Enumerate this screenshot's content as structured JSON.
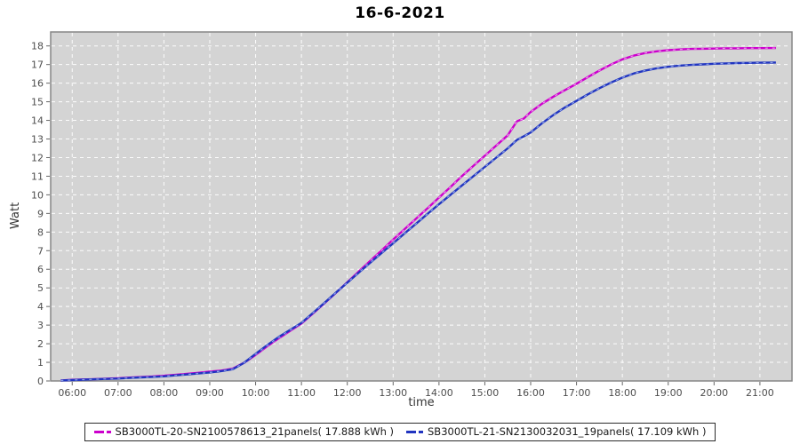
{
  "chart_data": {
    "type": "line",
    "title": "16-6-2021",
    "xlabel": "time",
    "ylabel": "Watt",
    "plot_bg": "#d4d4d4",
    "grid_color": "#ffffff",
    "border_color": "#868686",
    "tick_color": "#666666",
    "tick_label_color": "#4d4d4d",
    "legend_position": "bottom-center",
    "grid": "dashed-white-on-gray",
    "xlim": [
      5.53,
      21.7
    ],
    "ylim": [
      0,
      18.75
    ],
    "x_ticks": [
      {
        "v": 6,
        "label": "06:00"
      },
      {
        "v": 7,
        "label": "07:00"
      },
      {
        "v": 8,
        "label": "08:00"
      },
      {
        "v": 9,
        "label": "09:00"
      },
      {
        "v": 10,
        "label": "10:00"
      },
      {
        "v": 11,
        "label": "11:00"
      },
      {
        "v": 12,
        "label": "12:00"
      },
      {
        "v": 13,
        "label": "13:00"
      },
      {
        "v": 14,
        "label": "14:00"
      },
      {
        "v": 15,
        "label": "15:00"
      },
      {
        "v": 16,
        "label": "16:00"
      },
      {
        "v": 17,
        "label": "17:00"
      },
      {
        "v": 18,
        "label": "18:00"
      },
      {
        "v": 19,
        "label": "19:00"
      },
      {
        "v": 20,
        "label": "20:00"
      },
      {
        "v": 21,
        "label": "21:00"
      }
    ],
    "y_ticks": [
      {
        "v": 0,
        "label": "0"
      },
      {
        "v": 1,
        "label": "1"
      },
      {
        "v": 2,
        "label": "2"
      },
      {
        "v": 3,
        "label": "3"
      },
      {
        "v": 4,
        "label": "4"
      },
      {
        "v": 5,
        "label": "5"
      },
      {
        "v": 6,
        "label": "6"
      },
      {
        "v": 7,
        "label": "7"
      },
      {
        "v": 8,
        "label": "8"
      },
      {
        "v": 9,
        "label": "9"
      },
      {
        "v": 10,
        "label": "10"
      },
      {
        "v": 11,
        "label": "11"
      },
      {
        "v": 12,
        "label": "12"
      },
      {
        "v": 13,
        "label": "13"
      },
      {
        "v": 14,
        "label": "14"
      },
      {
        "v": 15,
        "label": "15"
      },
      {
        "v": 16,
        "label": "16"
      },
      {
        "v": 17,
        "label": "17"
      },
      {
        "v": 18,
        "label": "18"
      }
    ],
    "x": [
      5.75,
      6,
      6.25,
      6.5,
      6.75,
      7,
      7.25,
      7.5,
      7.75,
      8,
      8.25,
      8.5,
      8.75,
      9,
      9.25,
      9.5,
      9.75,
      10,
      10.25,
      10.5,
      10.75,
      11,
      11.25,
      11.5,
      11.75,
      12,
      12.25,
      12.5,
      12.75,
      13,
      13.25,
      13.5,
      13.75,
      14,
      14.25,
      14.5,
      14.75,
      15,
      15.25,
      15.5,
      15.7,
      15.85,
      16,
      16.25,
      16.5,
      16.75,
      17,
      17.25,
      17.5,
      17.75,
      18,
      18.25,
      18.5,
      18.75,
      19,
      19.25,
      19.5,
      19.75,
      20,
      20.25,
      20.5,
      20.75,
      21,
      21.35
    ],
    "series": [
      {
        "name": "SB3000TL-20",
        "legend_label": "SB3000TL-20-SN2100578613_21panels( 17.888 kWh )",
        "color": "#cc00cc",
        "light_color": "#ee8fee",
        "total_kwh": 17.888,
        "values": [
          0.03,
          0.06,
          0.08,
          0.1,
          0.12,
          0.15,
          0.18,
          0.21,
          0.24,
          0.28,
          0.33,
          0.38,
          0.44,
          0.5,
          0.56,
          0.66,
          0.98,
          1.4,
          1.85,
          2.28,
          2.68,
          3.08,
          3.62,
          4.17,
          4.73,
          5.3,
          5.88,
          6.45,
          7.02,
          7.6,
          8.16,
          8.72,
          9.28,
          9.85,
          10.42,
          11.0,
          11.55,
          12.1,
          12.65,
          13.2,
          13.95,
          14.1,
          14.45,
          14.9,
          15.28,
          15.63,
          15.97,
          16.33,
          16.68,
          17.0,
          17.28,
          17.48,
          17.62,
          17.71,
          17.77,
          17.81,
          17.84,
          17.85,
          17.86,
          17.87,
          17.87,
          17.88,
          17.88,
          17.888
        ]
      },
      {
        "name": "SB3000TL-21",
        "legend_label": "SB3000TL-21-SN2130032031_19panels( 17.109 kWh )",
        "color": "#2135c0",
        "light_color": "#8fa4e8",
        "total_kwh": 17.109,
        "values": [
          0.03,
          0.05,
          0.07,
          0.09,
          0.11,
          0.13,
          0.16,
          0.19,
          0.22,
          0.25,
          0.3,
          0.35,
          0.4,
          0.46,
          0.53,
          0.63,
          0.98,
          1.45,
          1.92,
          2.35,
          2.74,
          3.12,
          3.65,
          4.19,
          4.74,
          5.28,
          5.82,
          6.35,
          6.88,
          7.4,
          7.93,
          8.45,
          8.98,
          9.5,
          10.0,
          10.5,
          11.0,
          11.5,
          12.0,
          12.5,
          12.95,
          13.15,
          13.35,
          13.85,
          14.3,
          14.7,
          15.05,
          15.4,
          15.73,
          16.03,
          16.3,
          16.52,
          16.68,
          16.8,
          16.88,
          16.94,
          16.98,
          17.01,
          17.04,
          17.06,
          17.08,
          17.09,
          17.1,
          17.109
        ]
      }
    ]
  }
}
